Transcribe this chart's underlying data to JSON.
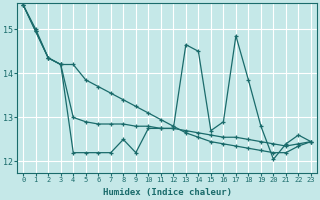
{
  "xlabel": "Humidex (Indice chaleur)",
  "bg_color": "#c5e8e8",
  "grid_color": "#ffffff",
  "line_color": "#1a6b6b",
  "xlim": [
    -0.5,
    23.5
  ],
  "ylim": [
    11.75,
    15.6
  ],
  "yticks": [
    12,
    13,
    14,
    15
  ],
  "xticks": [
    0,
    1,
    2,
    3,
    4,
    5,
    6,
    7,
    8,
    9,
    10,
    11,
    12,
    13,
    14,
    15,
    16,
    17,
    18,
    19,
    20,
    21,
    22,
    23
  ],
  "series1": [
    15.55,
    15.0,
    14.35,
    14.2,
    12.2,
    12.2,
    12.2,
    12.2,
    12.5,
    12.2,
    12.75,
    12.75,
    12.75,
    14.65,
    14.5,
    12.7,
    12.9,
    14.85,
    13.85,
    12.8,
    12.05,
    12.4,
    12.6,
    12.45
  ],
  "series2": [
    15.55,
    14.95,
    14.35,
    14.2,
    14.2,
    13.85,
    13.7,
    13.55,
    13.4,
    13.25,
    13.1,
    12.95,
    12.8,
    12.65,
    12.55,
    12.45,
    12.4,
    12.35,
    12.3,
    12.25,
    12.2,
    12.2,
    12.35,
    12.45
  ],
  "series3": [
    15.55,
    14.95,
    14.35,
    14.2,
    13.0,
    12.9,
    12.85,
    12.85,
    12.85,
    12.8,
    12.8,
    12.75,
    12.75,
    12.7,
    12.65,
    12.6,
    12.55,
    12.55,
    12.5,
    12.45,
    12.4,
    12.35,
    12.4,
    12.45
  ]
}
